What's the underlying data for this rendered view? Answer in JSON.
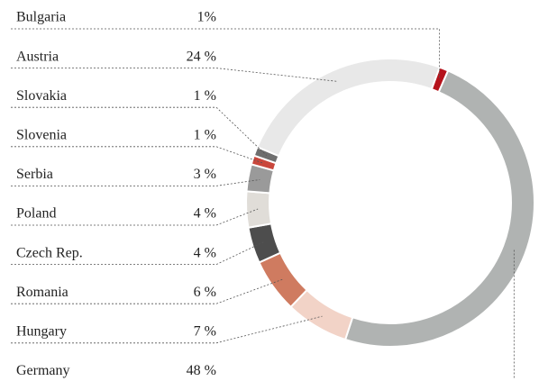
{
  "chart_data": {
    "type": "donut",
    "categories": [
      "Bulgaria",
      "Austria",
      "Slovakia",
      "Slovenia",
      "Serbia",
      "Poland",
      "Czech Rep.",
      "Romania",
      "Hungary",
      "Germany"
    ],
    "values": [
      1,
      24,
      1,
      1,
      3,
      4,
      4,
      6,
      7,
      48
    ],
    "value_labels": [
      "1%",
      "24 %",
      "1 %",
      "1 %",
      "3 %",
      "4 %",
      "4 %",
      "6 %",
      "7 %",
      "48 %"
    ],
    "colors": [
      "#b5121b",
      "#e8e8e8",
      "#6e6e6e",
      "#c9473c",
      "#9a9a9a",
      "#e0ddd8",
      "#4d4d4d",
      "#cf7b60",
      "#f2d3c7",
      "#b0b3b2"
    ]
  }
}
